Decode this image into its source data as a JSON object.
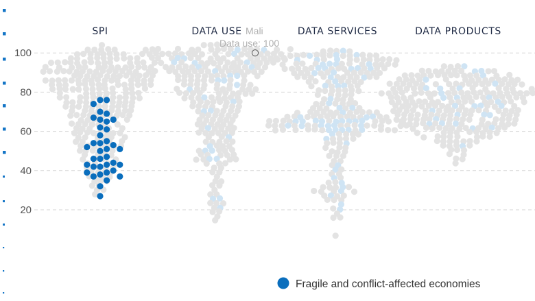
{
  "chart_data": {
    "type": "scatter",
    "subtype": "beeswarm",
    "columns": [
      "SPI",
      "DATA USE",
      "DATA SERVICES",
      "DATA PRODUCTS"
    ],
    "y_ticks": [
      20,
      40,
      60,
      80,
      100
    ],
    "ylim": [
      5,
      104
    ],
    "grid": true,
    "legend": {
      "label": "Fragile and conflict-affected economies",
      "placement": "bottom-right"
    },
    "colors": {
      "highlight": "#0a6ebd",
      "highlight_light": "#cfe4f4",
      "base": "#e3e3e3",
      "side_dash": "#1475c6",
      "title": "#1f2a44"
    },
    "tooltip": {
      "name": "Mali",
      "label": "Data use: 100",
      "column": "DATA USE",
      "value": 100
    },
    "series": [
      {
        "name": "Fragile and conflict-affected economies",
        "column": "SPI",
        "values": [
          74,
          76,
          76,
          70,
          69,
          67,
          66,
          66,
          65,
          62,
          61,
          58,
          55,
          54,
          54,
          53,
          52,
          51,
          51,
          50,
          47,
          46,
          46,
          44,
          43,
          43,
          43,
          42,
          42,
          40,
          39,
          39,
          38,
          37,
          37,
          35,
          32,
          27
        ]
      }
    ]
  }
}
